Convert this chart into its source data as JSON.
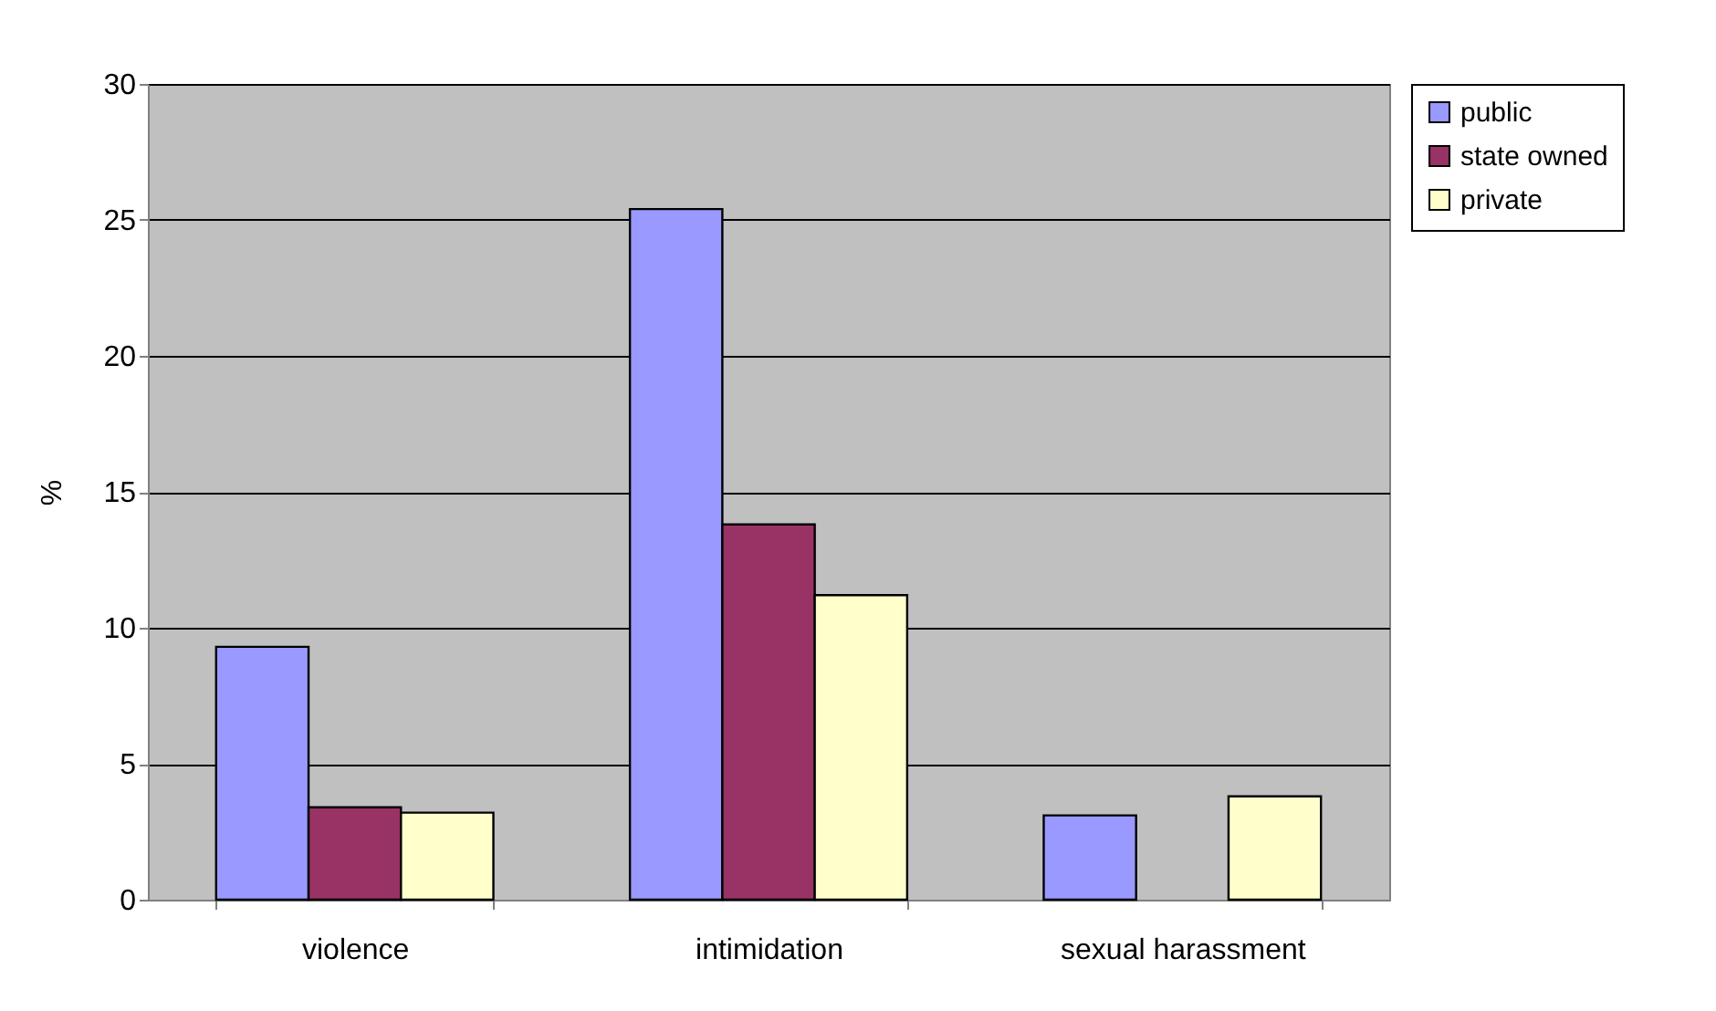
{
  "chart_data": {
    "type": "bar",
    "ylabel": "%",
    "categories": [
      "violence",
      "intimidation",
      "sexual harassment"
    ],
    "series": [
      {
        "name": "public",
        "color": "#9999ff",
        "values": [
          9.3,
          25.4,
          3.1
        ]
      },
      {
        "name": "state owned",
        "color": "#993366",
        "values": [
          3.4,
          13.8,
          null
        ]
      },
      {
        "name": "private",
        "color": "#ffffcc",
        "values": [
          3.2,
          11.2,
          3.8
        ]
      }
    ],
    "ylim": [
      0,
      30
    ],
    "yticks": [
      0,
      5,
      10,
      15,
      20,
      25,
      30
    ],
    "grid": "y",
    "legend": "right"
  }
}
